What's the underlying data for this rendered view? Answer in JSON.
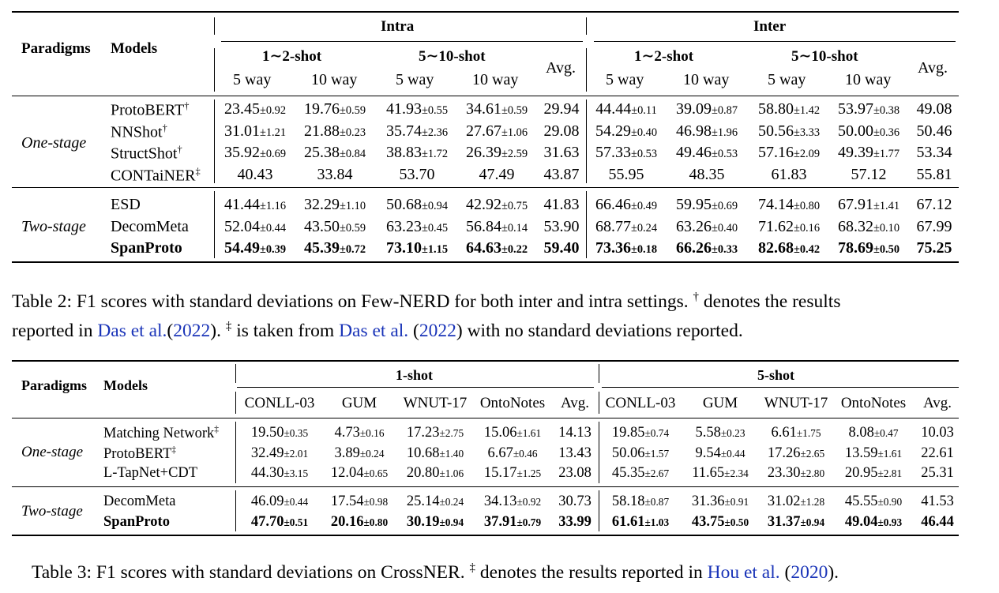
{
  "table2": {
    "header": {
      "paradigms": "Paradigms",
      "models": "Models",
      "intra": "Intra",
      "inter": "Inter",
      "shot_a": "1∼2-shot",
      "shot_b": "5∼10-shot",
      "avg": "Avg.",
      "way5": "5 way",
      "way10": "10 way"
    },
    "groups": [
      {
        "paradigm": "One-stage",
        "rows": [
          {
            "model": "ProtoBERT",
            "mark": "†",
            "bold": false,
            "cells": [
              [
                "23.45",
                "±0.92"
              ],
              [
                "19.76",
                "±0.59"
              ],
              [
                "41.93",
                "±0.55"
              ],
              [
                "34.61",
                "±0.59"
              ],
              [
                "29.94",
                ""
              ],
              [
                "44.44",
                "±0.11"
              ],
              [
                "39.09",
                "±0.87"
              ],
              [
                "58.80",
                "±1.42"
              ],
              [
                "53.97",
                "±0.38"
              ],
              [
                "49.08",
                ""
              ]
            ]
          },
          {
            "model": "NNShot",
            "mark": "†",
            "bold": false,
            "cells": [
              [
                "31.01",
                "±1.21"
              ],
              [
                "21.88",
                "±0.23"
              ],
              [
                "35.74",
                "±2.36"
              ],
              [
                "27.67",
                "±1.06"
              ],
              [
                "29.08",
                ""
              ],
              [
                "54.29",
                "±0.40"
              ],
              [
                "46.98",
                "±1.96"
              ],
              [
                "50.56",
                "±3.33"
              ],
              [
                "50.00",
                "±0.36"
              ],
              [
                "50.46",
                ""
              ]
            ]
          },
          {
            "model": "StructShot",
            "mark": "†",
            "bold": false,
            "cells": [
              [
                "35.92",
                "±0.69"
              ],
              [
                "25.38",
                "±0.84"
              ],
              [
                "38.83",
                "±1.72"
              ],
              [
                "26.39",
                "±2.59"
              ],
              [
                "31.63",
                ""
              ],
              [
                "57.33",
                "±0.53"
              ],
              [
                "49.46",
                "±0.53"
              ],
              [
                "57.16",
                "±2.09"
              ],
              [
                "49.39",
                "±1.77"
              ],
              [
                "53.34",
                ""
              ]
            ]
          },
          {
            "model": "CONTaiNER",
            "mark": "‡",
            "bold": false,
            "cells": [
              [
                "40.43",
                ""
              ],
              [
                "33.84",
                ""
              ],
              [
                "53.70",
                ""
              ],
              [
                "47.49",
                ""
              ],
              [
                "43.87",
                ""
              ],
              [
                "55.95",
                ""
              ],
              [
                "48.35",
                ""
              ],
              [
                "61.83",
                ""
              ],
              [
                "57.12",
                ""
              ],
              [
                "55.81",
                ""
              ]
            ]
          }
        ]
      },
      {
        "paradigm": "Two-stage",
        "rows": [
          {
            "model": "ESD",
            "mark": "",
            "bold": false,
            "cells": [
              [
                "41.44",
                "±1.16"
              ],
              [
                "32.29",
                "±1.10"
              ],
              [
                "50.68",
                "±0.94"
              ],
              [
                "42.92",
                "±0.75"
              ],
              [
                "41.83",
                ""
              ],
              [
                "66.46",
                "±0.49"
              ],
              [
                "59.95",
                "±0.69"
              ],
              [
                "74.14",
                "±0.80"
              ],
              [
                "67.91",
                "±1.41"
              ],
              [
                "67.12",
                ""
              ]
            ]
          },
          {
            "model": "DecomMeta",
            "mark": "",
            "bold": false,
            "cells": [
              [
                "52.04",
                "±0.44"
              ],
              [
                "43.50",
                "±0.59"
              ],
              [
                "63.23",
                "±0.45"
              ],
              [
                "56.84",
                "±0.14"
              ],
              [
                "53.90",
                ""
              ],
              [
                "68.77",
                "±0.24"
              ],
              [
                "63.26",
                "±0.40"
              ],
              [
                "71.62",
                "±0.16"
              ],
              [
                "68.32",
                "±0.10"
              ],
              [
                "67.99",
                ""
              ]
            ]
          },
          {
            "model": "SpanProto",
            "mark": "",
            "bold": true,
            "cells": [
              [
                "54.49",
                "±0.39"
              ],
              [
                "45.39",
                "±0.72"
              ],
              [
                "73.10",
                "±1.15"
              ],
              [
                "64.63",
                "±0.22"
              ],
              [
                "59.40",
                ""
              ],
              [
                "73.36",
                "±0.18"
              ],
              [
                "66.26",
                "±0.33"
              ],
              [
                "82.68",
                "±0.42"
              ],
              [
                "78.69",
                "±0.50"
              ],
              [
                "75.25",
                ""
              ]
            ]
          }
        ]
      }
    ]
  },
  "caption2": {
    "line1_a": "Table 2: F1 scores with standard deviations on Few-NERD for both inter and intra settings.",
    "dagger": "†",
    "line1_b": "denotes the results",
    "line2_a": "reported in",
    "cite1_name": "Das et al.",
    "cite1_open": "(",
    "cite1_year": "2022",
    "cite1_close": ").",
    "ddagger": "‡",
    "line2_b": "is taken from",
    "cite2_name": "Das et al.",
    "cite2_year": "2022",
    "line2_c": ") with no standard deviations reported."
  },
  "table3": {
    "header": {
      "paradigms": "Paradigms",
      "models": "Models",
      "shot1": "1-shot",
      "shot5": "5-shot",
      "cols": [
        "CONLL-03",
        "GUM",
        "WNUT-17",
        "OntoNotes",
        "Avg."
      ]
    },
    "groups": [
      {
        "paradigm": "One-stage",
        "rows": [
          {
            "model": "Matching Network",
            "mark": "‡",
            "bold": false,
            "cells": [
              [
                "19.50",
                "±0.35"
              ],
              [
                "4.73",
                "±0.16"
              ],
              [
                "17.23",
                "±2.75"
              ],
              [
                "15.06",
                "±1.61"
              ],
              [
                "14.13",
                ""
              ],
              [
                "19.85",
                "±0.74"
              ],
              [
                "5.58",
                "±0.23"
              ],
              [
                "6.61",
                "±1.75"
              ],
              [
                "8.08",
                "±0.47"
              ],
              [
                "10.03",
                ""
              ]
            ]
          },
          {
            "model": "ProtoBERT",
            "mark": "‡",
            "bold": false,
            "cells": [
              [
                "32.49",
                "±2.01"
              ],
              [
                "3.89",
                "±0.24"
              ],
              [
                "10.68",
                "±1.40"
              ],
              [
                "6.67",
                "±0.46"
              ],
              [
                "13.43",
                ""
              ],
              [
                "50.06",
                "±1.57"
              ],
              [
                "9.54",
                "±0.44"
              ],
              [
                "17.26",
                "±2.65"
              ],
              [
                "13.59",
                "±1.61"
              ],
              [
                "22.61",
                ""
              ]
            ]
          },
          {
            "model": "L-TapNet+CDT",
            "mark": "",
            "bold": false,
            "cells": [
              [
                "44.30",
                "±3.15"
              ],
              [
                "12.04",
                "±0.65"
              ],
              [
                "20.80",
                "±1.06"
              ],
              [
                "15.17",
                "±1.25"
              ],
              [
                "23.08",
                ""
              ],
              [
                "45.35",
                "±2.67"
              ],
              [
                "11.65",
                "±2.34"
              ],
              [
                "23.30",
                "±2.80"
              ],
              [
                "20.95",
                "±2.81"
              ],
              [
                "25.31",
                ""
              ]
            ]
          }
        ]
      },
      {
        "paradigm": "Two-stage",
        "rows": [
          {
            "model": "DecomMeta",
            "mark": "",
            "bold": false,
            "cells": [
              [
                "46.09",
                "±0.44"
              ],
              [
                "17.54",
                "±0.98"
              ],
              [
                "25.14",
                "±0.24"
              ],
              [
                "34.13",
                "±0.92"
              ],
              [
                "30.73",
                ""
              ],
              [
                "58.18",
                "±0.87"
              ],
              [
                "31.36",
                "±0.91"
              ],
              [
                "31.02",
                "±1.28"
              ],
              [
                "45.55",
                "±0.90"
              ],
              [
                "41.53",
                ""
              ]
            ]
          },
          {
            "model": "SpanProto",
            "mark": "",
            "bold": true,
            "cells": [
              [
                "47.70",
                "±0.51"
              ],
              [
                "20.16",
                "±0.80"
              ],
              [
                "30.19",
                "±0.94"
              ],
              [
                "37.91",
                "±0.79"
              ],
              [
                "33.99",
                ""
              ],
              [
                "61.61",
                "±1.03"
              ],
              [
                "43.75",
                "±0.50"
              ],
              [
                "31.37",
                "±0.94"
              ],
              [
                "49.04",
                "±0.93"
              ],
              [
                "46.44",
                ""
              ]
            ]
          }
        ]
      }
    ]
  },
  "caption3": {
    "text_a": "Table 3: F1 scores with standard deviations on CrossNER.",
    "ddagger": "‡",
    "text_b": "denotes the results reported in",
    "cite_name": "Hou et al.",
    "cite_open": "(",
    "cite_year": "2020",
    "cite_close": ")."
  }
}
